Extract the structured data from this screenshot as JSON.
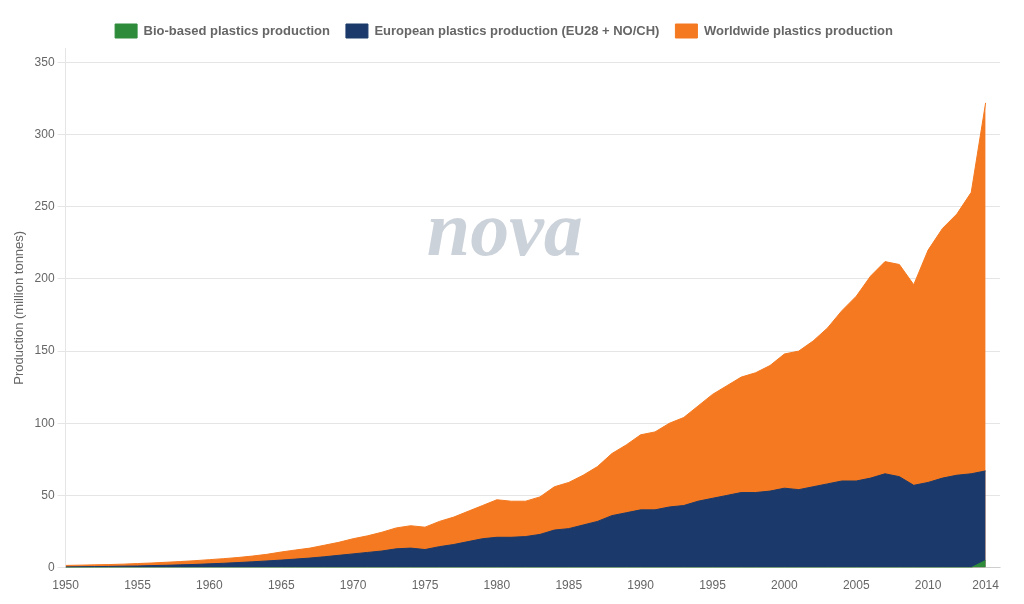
{
  "chart_data": {
    "type": "area",
    "y_label": "Production (million tonnes)",
    "x": [
      1950,
      1951,
      1952,
      1953,
      1954,
      1955,
      1956,
      1957,
      1958,
      1959,
      1960,
      1961,
      1962,
      1963,
      1964,
      1965,
      1966,
      1967,
      1968,
      1969,
      1970,
      1971,
      1972,
      1973,
      1974,
      1975,
      1976,
      1977,
      1978,
      1979,
      1980,
      1981,
      1982,
      1983,
      1984,
      1985,
      1986,
      1987,
      1988,
      1989,
      1990,
      1991,
      1992,
      1993,
      1994,
      1995,
      1996,
      1997,
      1998,
      1999,
      2000,
      2001,
      2002,
      2003,
      2004,
      2005,
      2006,
      2007,
      2008,
      2009,
      2010,
      2011,
      2012,
      2013,
      2014
    ],
    "series": [
      {
        "name": "Worldwide plastics production",
        "color": "#f47920",
        "values": [
          1.5,
          1.7,
          1.9,
          2.1,
          2.4,
          2.8,
          3.2,
          3.7,
          4.2,
          4.8,
          5.5,
          6.2,
          7.0,
          8.0,
          9.2,
          10.8,
          12.2,
          13.5,
          15.5,
          17.5,
          20.0,
          22.0,
          24.5,
          27.5,
          29.0,
          28.0,
          32.0,
          35.0,
          39.0,
          43.0,
          47.0,
          46.0,
          46.0,
          49.0,
          56.0,
          59.0,
          64.0,
          70.0,
          79.0,
          85.0,
          92.0,
          94.0,
          100.0,
          104.0,
          112.0,
          120.0,
          126.0,
          132.0,
          135.0,
          140.0,
          148.0,
          150.0,
          157.0,
          166.0,
          178.0,
          188.0,
          202.0,
          212.0,
          210.0,
          196.0,
          220.0,
          235.0,
          245.0,
          260.0,
          322.0
        ]
      },
      {
        "name": "European plastics production (EU28 + NO/CH)",
        "color": "#1b3a6b",
        "values": [
          0.5,
          0.6,
          0.7,
          0.8,
          1.0,
          1.1,
          1.4,
          1.6,
          1.9,
          2.2,
          2.6,
          3.0,
          3.5,
          4.0,
          4.6,
          5.2,
          5.9,
          6.6,
          7.5,
          8.5,
          9.5,
          10.5,
          11.5,
          13.0,
          13.5,
          12.5,
          14.5,
          16.0,
          18.0,
          20.0,
          21.0,
          21.0,
          21.5,
          23.0,
          26.0,
          27.0,
          29.5,
          32.0,
          36.0,
          38.0,
          40.0,
          40.0,
          42.0,
          43.0,
          46.0,
          48.0,
          50.0,
          52.0,
          52.0,
          53.0,
          55.0,
          54.0,
          56.0,
          58.0,
          60.0,
          60.0,
          62.0,
          65.0,
          63.0,
          57.0,
          59.0,
          62.0,
          64.0,
          65.0,
          67.0
        ]
      },
      {
        "name": "Bio-based plastics production",
        "color": "#2e8b3a",
        "values": [
          0.0,
          0.0,
          0.0,
          0.0,
          0.0,
          0.0,
          0.0,
          0.0,
          0.0,
          0.0,
          0.0,
          0.0,
          0.0,
          0.0,
          0.0,
          0.0,
          0.0,
          0.0,
          0.0,
          0.0,
          0.0,
          0.0,
          0.0,
          0.0,
          0.0,
          0.0,
          0.0,
          0.0,
          0.0,
          0.0,
          0.0,
          0.0,
          0.0,
          0.0,
          0.0,
          0.0,
          0.0,
          0.0,
          0.0,
          0.0,
          0.0,
          0.0,
          0.0,
          0.0,
          0.0,
          0.0,
          0.0,
          0.0,
          0.0,
          0.0,
          0.0,
          0.0,
          0.0,
          0.0,
          0.0,
          0.0,
          0.0,
          0.0,
          0.0,
          0.0,
          0.0,
          0.0,
          0.0,
          0.0,
          5.0
        ]
      }
    ],
    "xlim": [
      1950,
      2015
    ],
    "xticks": [
      1950,
      1955,
      1960,
      1965,
      1970,
      1975,
      1980,
      1985,
      1990,
      1995,
      2000,
      2005,
      2010,
      2014
    ],
    "ylim": [
      0,
      360
    ],
    "yticks": [
      0,
      50,
      100,
      150,
      200,
      250,
      300,
      350
    ],
    "grid": "y",
    "legend": "top",
    "annotations": [
      "nova"
    ]
  }
}
